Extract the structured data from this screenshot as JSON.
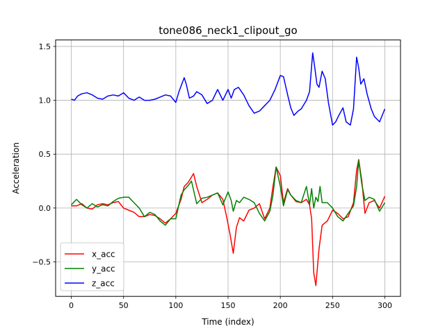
{
  "chart_data": {
    "type": "line",
    "title": "tone086_neck1_clipout_go",
    "xlabel": "Time (index)",
    "ylabel": "Acceleration",
    "xlim": [
      -15,
      315
    ],
    "ylim": [
      -0.82,
      1.56
    ],
    "xticks": [
      0,
      50,
      100,
      150,
      200,
      250,
      300
    ],
    "yticks": [
      -0.5,
      0.0,
      0.5,
      1.0,
      1.5
    ],
    "xtick_labels": [
      "0",
      "50",
      "100",
      "150",
      "200",
      "250",
      "300"
    ],
    "ytick_labels": [
      "−0.5",
      "0.0",
      "0.5",
      "1.0",
      "1.5"
    ],
    "grid": true,
    "legend_position": "lower-left",
    "series": [
      {
        "name": "x_acc",
        "color": "#ff0000",
        "x": [
          0,
          5,
          10,
          15,
          20,
          25,
          30,
          35,
          40,
          45,
          50,
          55,
          60,
          65,
          70,
          75,
          80,
          85,
          90,
          95,
          100,
          105,
          108,
          112,
          117,
          120,
          125,
          130,
          135,
          140,
          145,
          149,
          152,
          155,
          158,
          161,
          165,
          170,
          175,
          180,
          185,
          190,
          193,
          196,
          200,
          203,
          207,
          210,
          215,
          220,
          225,
          228,
          230,
          232,
          234,
          237,
          240,
          245,
          250,
          255,
          260,
          265,
          270,
          273,
          275,
          278,
          281,
          285,
          290,
          295,
          300
        ],
        "y": [
          0.02,
          0.02,
          0.04,
          0.0,
          -0.01,
          0.03,
          0.04,
          0.03,
          0.05,
          0.06,
          0.0,
          -0.02,
          -0.04,
          -0.08,
          -0.08,
          -0.06,
          -0.07,
          -0.1,
          -0.14,
          -0.1,
          -0.05,
          0.08,
          0.2,
          0.24,
          0.32,
          0.2,
          0.05,
          0.08,
          0.12,
          0.14,
          0.08,
          -0.1,
          -0.25,
          -0.42,
          -0.18,
          -0.09,
          -0.12,
          -0.02,
          0.0,
          0.04,
          -0.1,
          0.0,
          0.2,
          0.38,
          0.3,
          0.05,
          0.18,
          0.12,
          0.06,
          0.05,
          0.08,
          0.03,
          -0.1,
          -0.6,
          -0.72,
          -0.38,
          -0.16,
          -0.12,
          -0.02,
          -0.05,
          -0.1,
          -0.08,
          0.05,
          0.35,
          0.45,
          0.25,
          -0.05,
          0.05,
          0.07,
          0.0,
          0.11
        ]
      },
      {
        "name": "y_acc",
        "color": "#008000",
        "x": [
          0,
          5,
          10,
          15,
          20,
          25,
          30,
          35,
          40,
          45,
          50,
          55,
          60,
          65,
          70,
          75,
          80,
          85,
          90,
          95,
          100,
          105,
          108,
          112,
          115,
          120,
          125,
          130,
          135,
          140,
          145,
          150,
          153,
          155,
          158,
          161,
          165,
          170,
          175,
          180,
          185,
          190,
          193,
          196,
          200,
          203,
          207,
          210,
          215,
          220,
          225,
          228,
          230,
          232,
          234,
          236,
          238,
          240,
          245,
          250,
          255,
          260,
          265,
          270,
          273,
          275,
          278,
          281,
          285,
          290,
          295,
          300
        ],
        "y": [
          0.03,
          0.08,
          0.03,
          0.0,
          0.04,
          0.01,
          0.03,
          0.02,
          0.06,
          0.09,
          0.1,
          0.1,
          0.05,
          0.0,
          -0.08,
          -0.04,
          -0.06,
          -0.12,
          -0.16,
          -0.1,
          -0.1,
          0.12,
          0.17,
          0.21,
          0.25,
          0.04,
          0.09,
          0.1,
          0.12,
          0.14,
          0.03,
          0.15,
          0.07,
          -0.03,
          0.07,
          0.05,
          0.1,
          0.08,
          0.05,
          -0.05,
          -0.12,
          -0.03,
          0.12,
          0.38,
          0.2,
          0.02,
          0.17,
          0.12,
          0.07,
          0.05,
          0.2,
          0.03,
          0.18,
          0.0,
          0.1,
          0.06,
          0.2,
          0.05,
          0.05,
          0.0,
          -0.08,
          -0.12,
          -0.05,
          0.02,
          0.2,
          0.44,
          0.22,
          0.07,
          0.1,
          0.08,
          -0.03,
          0.05
        ]
      },
      {
        "name": "z_acc",
        "color": "#0000ff",
        "x": [
          0,
          3,
          6,
          10,
          15,
          20,
          25,
          30,
          35,
          40,
          45,
          50,
          55,
          60,
          65,
          70,
          75,
          80,
          85,
          90,
          95,
          100,
          103,
          108,
          110,
          113,
          117,
          120,
          125,
          130,
          135,
          140,
          145,
          150,
          153,
          156,
          160,
          165,
          170,
          175,
          180,
          185,
          190,
          195,
          200,
          203,
          207,
          210,
          213,
          217,
          220,
          225,
          228,
          231,
          233,
          235,
          237,
          240,
          243,
          246,
          250,
          253,
          256,
          260,
          263,
          267,
          270,
          273,
          275,
          277,
          280,
          283,
          287,
          290,
          295,
          300
        ],
        "y": [
          1.01,
          1.0,
          1.04,
          1.06,
          1.07,
          1.05,
          1.02,
          1.01,
          1.04,
          1.05,
          1.04,
          1.07,
          1.02,
          1.0,
          1.03,
          1.0,
          1.0,
          1.01,
          1.03,
          1.05,
          1.04,
          0.98,
          1.08,
          1.21,
          1.15,
          1.02,
          1.04,
          1.08,
          1.05,
          0.97,
          1.0,
          1.1,
          1.0,
          1.1,
          1.02,
          1.1,
          1.12,
          1.05,
          0.95,
          0.88,
          0.9,
          0.95,
          1.0,
          1.1,
          1.23,
          1.22,
          1.05,
          0.93,
          0.86,
          0.9,
          0.92,
          1.0,
          1.08,
          1.44,
          1.3,
          1.15,
          1.12,
          1.27,
          1.2,
          0.98,
          0.77,
          0.8,
          0.86,
          0.93,
          0.8,
          0.77,
          0.92,
          1.4,
          1.3,
          1.15,
          1.2,
          1.06,
          0.92,
          0.85,
          0.8,
          0.92
        ]
      }
    ]
  }
}
